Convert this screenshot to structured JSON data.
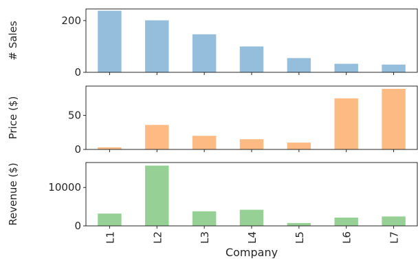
{
  "chart_data": {
    "type": "bar",
    "categories": [
      "L1",
      "L2",
      "L3",
      "L4",
      "L5",
      "L6",
      "L7"
    ],
    "xlabel": "Company",
    "panels": [
      {
        "ylabel": "# Sales",
        "color": "#94bedc",
        "ylim": [
          0,
          245
        ],
        "yticks": [
          0,
          200
        ],
        "ytick_labels": [
          "0",
          "200"
        ],
        "values": [
          238,
          201,
          147,
          100,
          55,
          33,
          30
        ]
      },
      {
        "ylabel": "Price ($)",
        "color": "#fdbb83",
        "ylim": [
          0,
          93
        ],
        "yticks": [
          0,
          50
        ],
        "ytick_labels": [
          "0",
          "50"
        ],
        "values": [
          3,
          36,
          20,
          15,
          10,
          75,
          89
        ]
      },
      {
        "ylabel": "Revenue ($)",
        "color": "#96d095",
        "ylim": [
          0,
          16500
        ],
        "yticks": [
          0,
          10000
        ],
        "ytick_labels": [
          "0",
          "10000"
        ],
        "values": [
          3200,
          15700,
          3800,
          4200,
          750,
          2150,
          2450
        ]
      }
    ]
  }
}
